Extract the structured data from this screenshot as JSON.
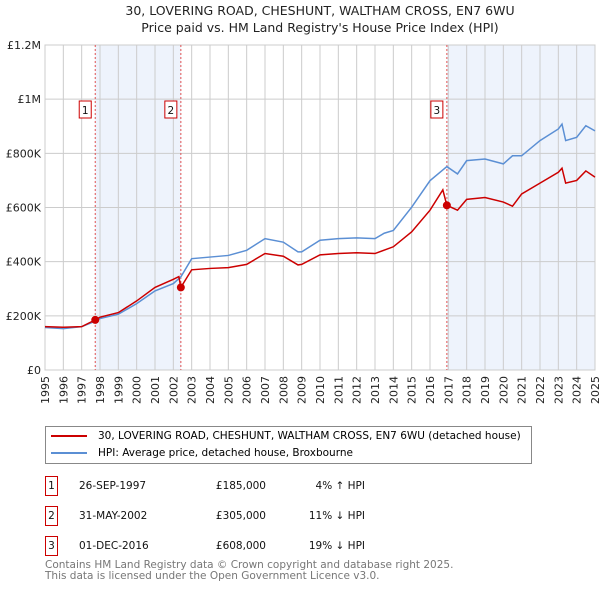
{
  "title_line1": "30, LOVERING ROAD, CHESHUNT, WALTHAM CROSS, EN7 6WU",
  "title_line2": "Price paid vs. HM Land Registry's House Price Index (HPI)",
  "chart_data": {
    "type": "line",
    "xlim": [
      1995,
      2025
    ],
    "ylim": [
      0,
      1200000
    ],
    "yticks": [
      {
        "v": 0,
        "label": "£0"
      },
      {
        "v": 200000,
        "label": "£200K"
      },
      {
        "v": 400000,
        "label": "£400K"
      },
      {
        "v": 600000,
        "label": "£600K"
      },
      {
        "v": 800000,
        "label": "£800K"
      },
      {
        "v": 1000000,
        "label": "£1M"
      },
      {
        "v": 1200000,
        "label": "£1.2M"
      }
    ],
    "xticks": [
      "1995",
      "1996",
      "1997",
      "1998",
      "1999",
      "2000",
      "2001",
      "2002",
      "2003",
      "2004",
      "2005",
      "2006",
      "2007",
      "2008",
      "2009",
      "2010",
      "2011",
      "2012",
      "2013",
      "2014",
      "2015",
      "2016",
      "2017",
      "2018",
      "2019",
      "2020",
      "2021",
      "2022",
      "2023",
      "2024",
      "2025"
    ],
    "shaded": [
      [
        1997.74,
        2002.41
      ],
      [
        2016.92,
        2025
      ]
    ],
    "series": [
      {
        "name": "30, LOVERING ROAD, CHESHUNT, WALTHAM CROSS, EN7 6WU (detached house)",
        "color": "#cc0000",
        "x": [
          1995,
          1996,
          1997,
          1997.74,
          1998,
          1999,
          2000,
          2001,
          2002,
          2002.3,
          2002.41,
          2003,
          2004,
          2005,
          2006,
          2007,
          2008,
          2008.8,
          2009,
          2010,
          2011,
          2012,
          2013,
          2014,
          2015,
          2016,
          2016.7,
          2016.92,
          2017.5,
          2018,
          2019,
          2020,
          2020.5,
          2021,
          2022,
          2023,
          2023.2,
          2023.4,
          2024,
          2024.5,
          2025
        ],
        "y": [
          160000,
          158000,
          160000,
          185000,
          195000,
          212000,
          255000,
          305000,
          335000,
          345000,
          305000,
          370000,
          375000,
          378000,
          390000,
          430000,
          420000,
          388000,
          390000,
          425000,
          430000,
          433000,
          430000,
          455000,
          510000,
          590000,
          665000,
          608000,
          590000,
          630000,
          637000,
          620000,
          605000,
          650000,
          690000,
          730000,
          745000,
          690000,
          700000,
          735000,
          712000
        ]
      },
      {
        "name": "HPI: Average price, detached house, Broxbourne",
        "color": "#5b8fd4",
        "x": [
          1995,
          1996,
          1997,
          1997.74,
          1998,
          1999,
          2000,
          2001,
          2002,
          2002.41,
          2003,
          2004,
          2005,
          2006,
          2007,
          2008,
          2008.8,
          2009,
          2010,
          2011,
          2012,
          2013,
          2013.5,
          2014,
          2015,
          2016,
          2016.92,
          2017.5,
          2018,
          2019,
          2020,
          2020.5,
          2021,
          2022,
          2023,
          2023.2,
          2023.4,
          2024,
          2024.5,
          2025
        ],
        "y": [
          157000,
          153000,
          160000,
          180000,
          190000,
          206000,
          245000,
          292000,
          319000,
          344000,
          411000,
          417000,
          423000,
          442000,
          485000,
          472000,
          436000,
          436000,
          479000,
          485000,
          488000,
          485000,
          505000,
          515000,
          601000,
          699000,
          751000,
          724000,
          773000,
          779000,
          761000,
          791000,
          791000,
          847000,
          890000,
          908000,
          847000,
          859000,
          902000,
          883000
        ]
      }
    ],
    "sales": [
      {
        "id": "1",
        "x": 1997.74,
        "y": 185000
      },
      {
        "id": "2",
        "x": 2002.41,
        "y": 305000
      },
      {
        "id": "3",
        "x": 2016.92,
        "y": 608000
      }
    ]
  },
  "legend": {
    "red": "30, LOVERING ROAD, CHESHUNT, WALTHAM CROSS, EN7 6WU (detached house)",
    "blue": "HPI: Average price, detached house, Broxbourne"
  },
  "table": [
    {
      "id": "1",
      "date": "26-SEP-1997",
      "price": "£185,000",
      "hpi": "4% ↑ HPI"
    },
    {
      "id": "2",
      "date": "31-MAY-2002",
      "price": "£305,000",
      "hpi": "11% ↓ HPI"
    },
    {
      "id": "3",
      "date": "01-DEC-2016",
      "price": "£608,000",
      "hpi": "19% ↓ HPI"
    }
  ],
  "footer1": "Contains HM Land Registry data © Crown copyright and database right 2025.",
  "footer2": "This data is licensed under the Open Government Licence v3.0."
}
